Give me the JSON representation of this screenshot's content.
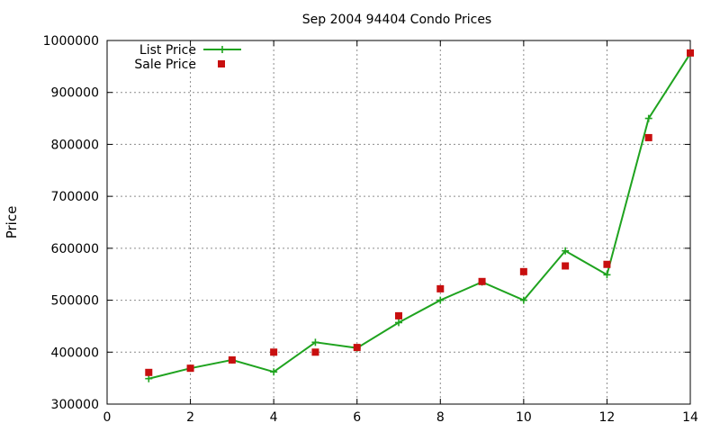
{
  "chart_data": {
    "type": "line",
    "title": "Sep 2004 94404 Condo Prices",
    "xlabel": "",
    "ylabel": "Price",
    "xlim": [
      0,
      14
    ],
    "ylim": [
      300000,
      1000000
    ],
    "xticks": [
      "0",
      "2",
      "4",
      "6",
      "8",
      "10",
      "12",
      "14"
    ],
    "yticks": [
      "300000",
      "400000",
      "500000",
      "600000",
      "700000",
      "800000",
      "900000",
      "1000000"
    ],
    "grid": true,
    "legend_position": "top-left",
    "series": [
      {
        "name": "List Price",
        "style": "line+cross",
        "color": "#1fa31f",
        "x": [
          1,
          2,
          3,
          4,
          5,
          6,
          7,
          8,
          9,
          10,
          11,
          12,
          13,
          14
        ],
        "y": [
          349000,
          369000,
          385000,
          362000,
          419000,
          408000,
          457000,
          500000,
          535000,
          500000,
          595000,
          549000,
          850000,
          975000
        ]
      },
      {
        "name": "Sale Price",
        "style": "square",
        "color": "#c80f0f",
        "x": [
          1,
          2,
          3,
          4,
          5,
          6,
          7,
          8,
          9,
          10,
          11,
          12,
          13,
          14
        ],
        "y": [
          361000,
          369000,
          385000,
          400000,
          400000,
          409000,
          470000,
          522000,
          536000,
          555000,
          566000,
          569000,
          813000,
          976000
        ]
      }
    ]
  }
}
